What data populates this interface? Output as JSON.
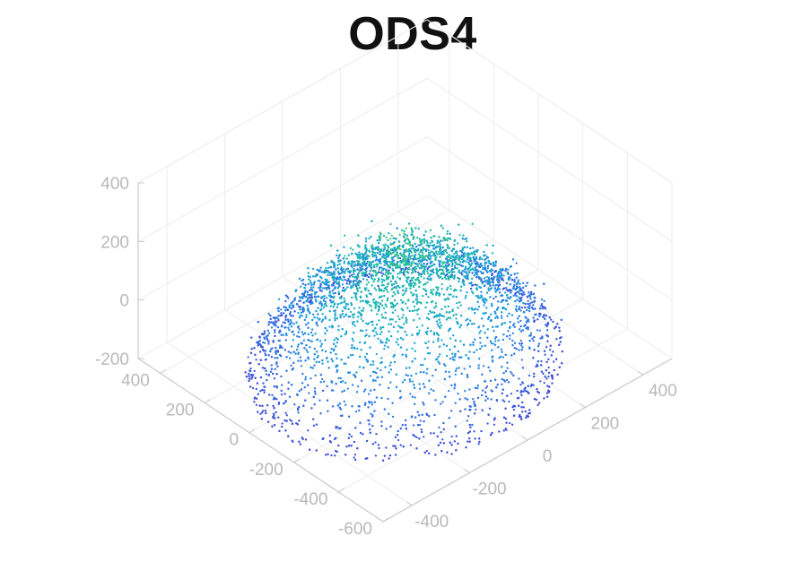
{
  "chart_data": {
    "type": "scatter",
    "title": "ODS4",
    "xlabel": "",
    "ylabel": "",
    "zlabel": "",
    "xlim": [
      -500,
      500
    ],
    "ylim": [
      -600,
      500
    ],
    "zlim": [
      -200,
      400
    ],
    "x_ticks": [
      "-400",
      "-200",
      "0",
      "200",
      "400"
    ],
    "y_ticks": [
      "-600",
      "-400",
      "-200",
      "0",
      "200",
      "400"
    ],
    "z_ticks": [
      "-200",
      "0",
      "200",
      "400"
    ],
    "grid": true,
    "colormap": "parula, mapped to z",
    "colormap_stops": [
      "#3e4ed8",
      "#2d7ae6",
      "#1aa3d7",
      "#1fbfa4",
      "#7ccb5c",
      "#e0c33a"
    ],
    "axis_color": "#c8c8c8",
    "tick_color": "#b9b9b9",
    "point_count": 6000,
    "shape": "dome-shaped point cloud: points higher near the centre (z up to ~340) and falling to about -200 towards the edges"
  }
}
